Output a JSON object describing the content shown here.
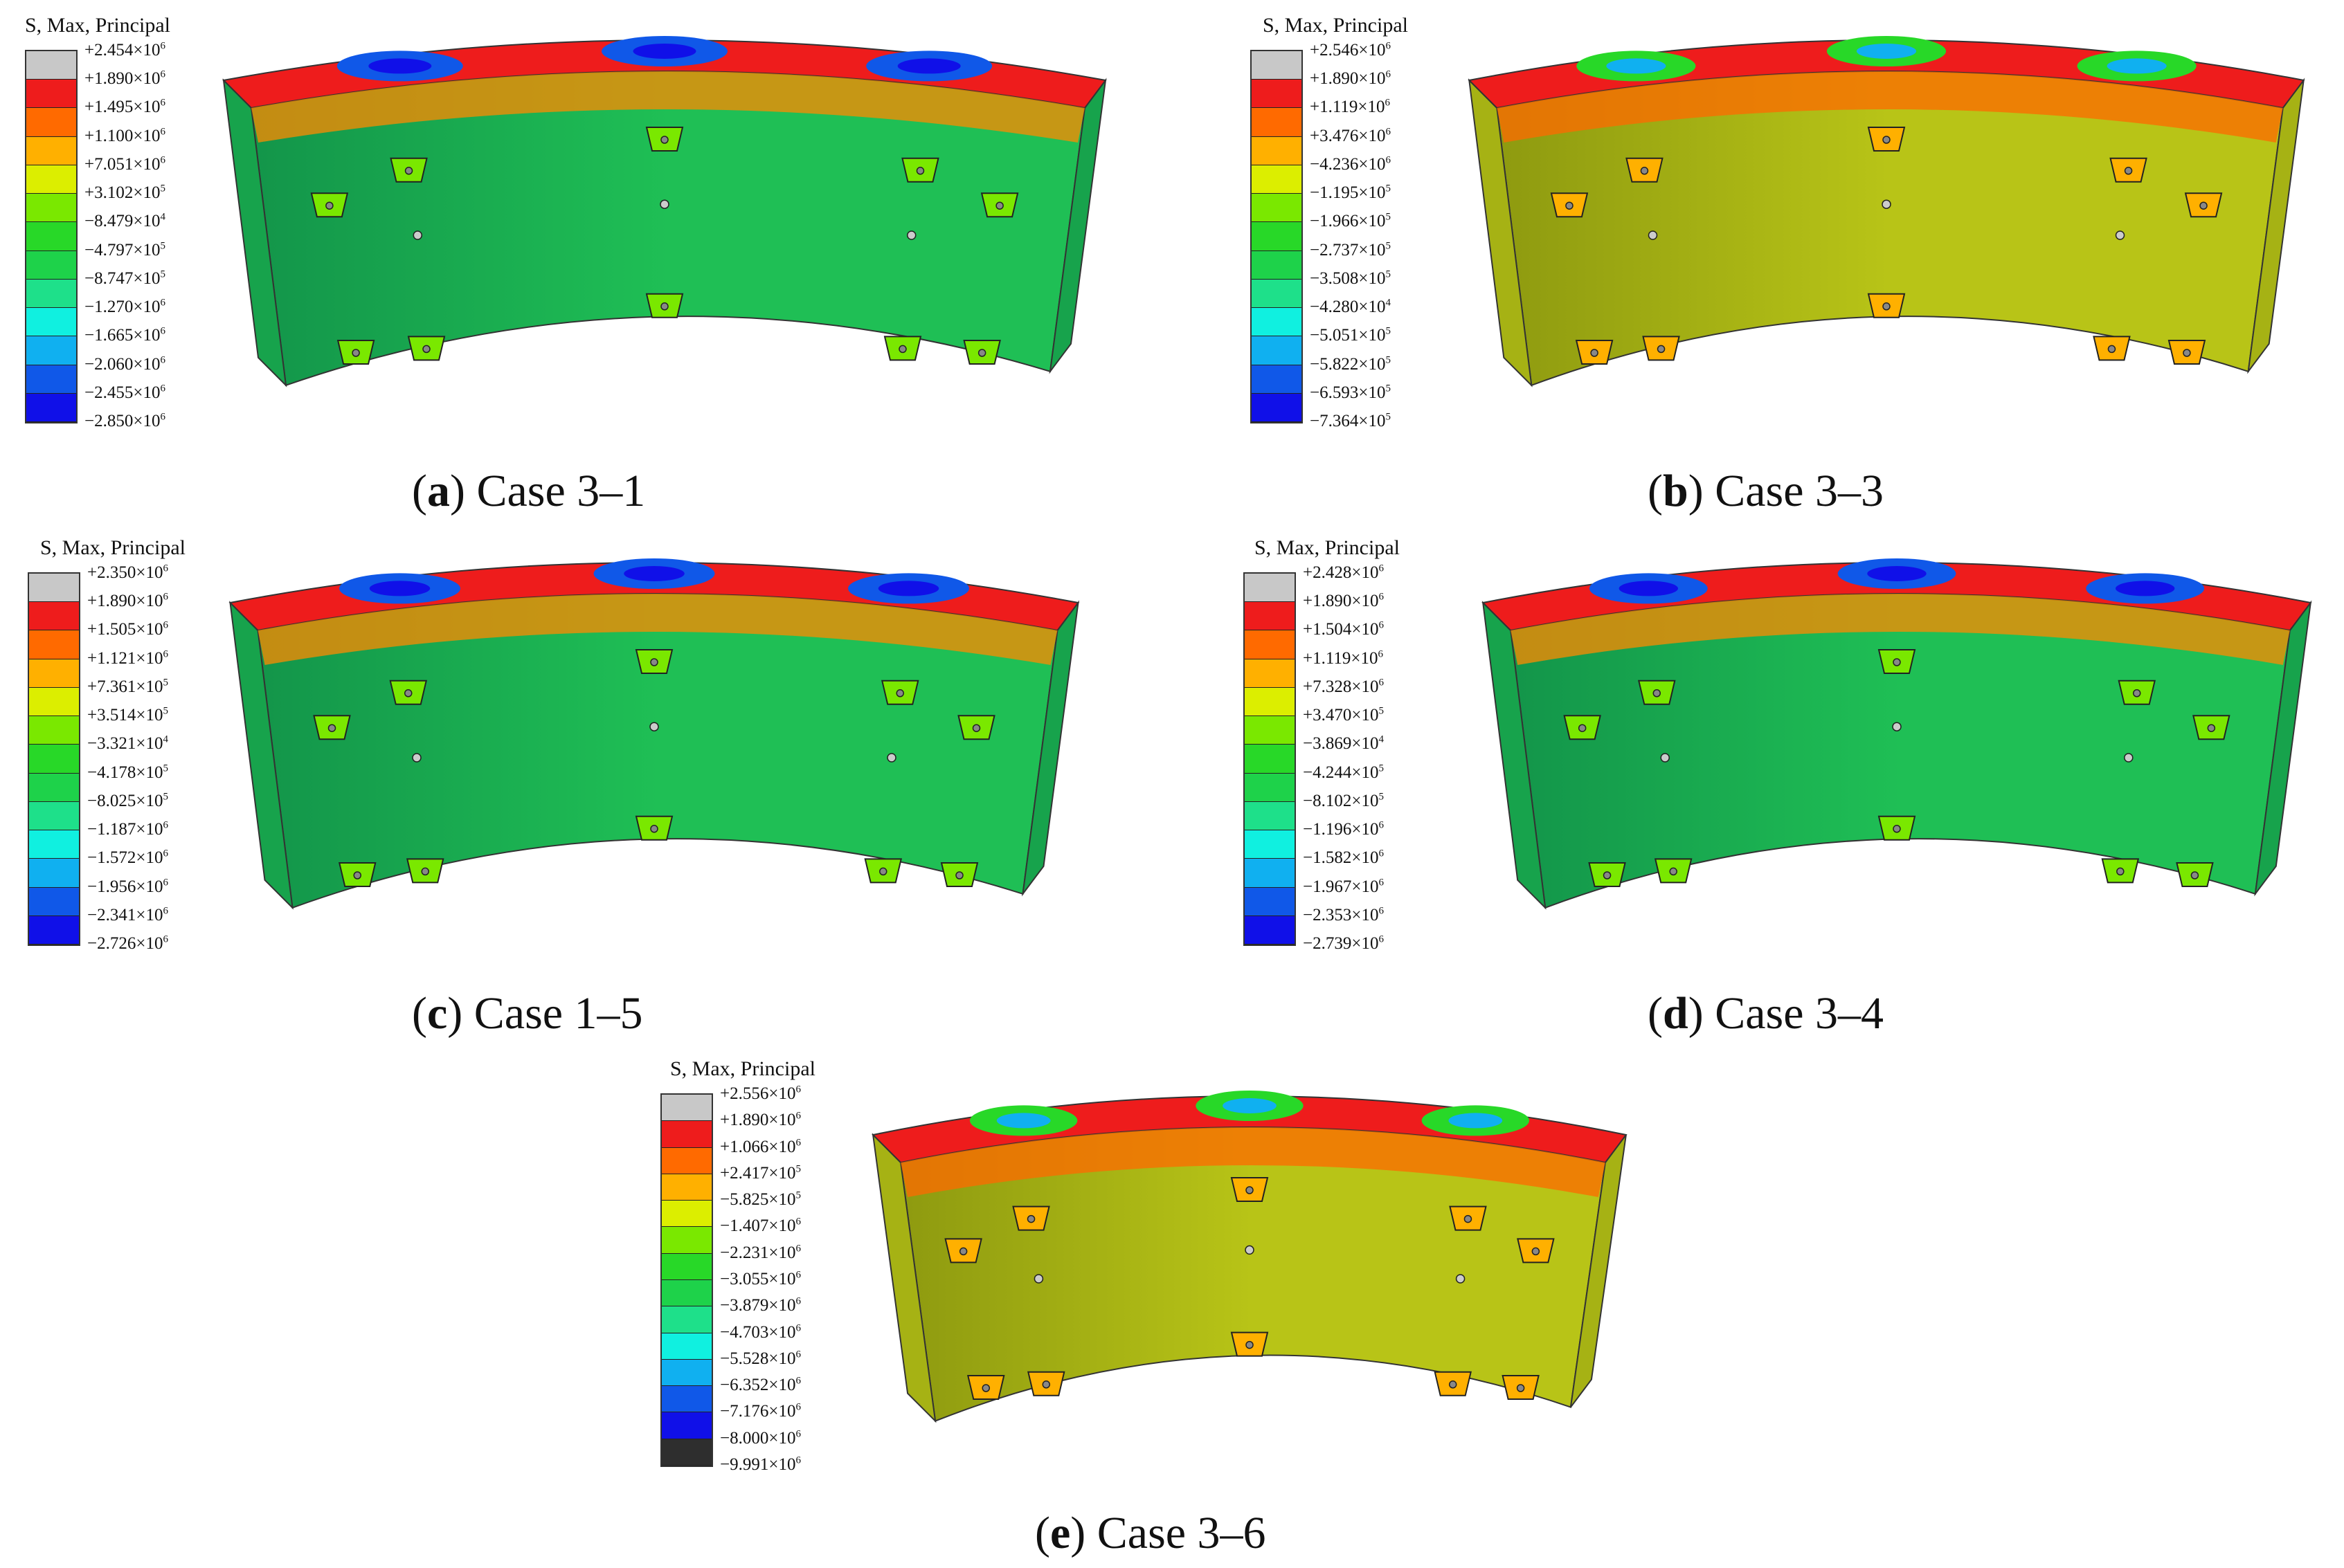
{
  "legend_title": "S, Max, Principal",
  "panels": [
    {
      "letter": "a",
      "caption": "Case 3–1",
      "labels": [
        [
          "+2.454",
          "6"
        ],
        [
          "+1.890",
          "6"
        ],
        [
          "+1.495",
          "6"
        ],
        [
          "+1.100",
          "6"
        ],
        [
          "+7.051",
          "6"
        ],
        [
          "+3.102",
          "5"
        ],
        [
          "−8.479",
          "4"
        ],
        [
          "−4.797",
          "5"
        ],
        [
          "−8.747",
          "5"
        ],
        [
          "−1.270",
          "6"
        ],
        [
          "−1.665",
          "6"
        ],
        [
          "−2.060",
          "6"
        ],
        [
          "−2.455",
          "6"
        ],
        [
          "−2.850",
          "6"
        ]
      ]
    },
    {
      "letter": "b",
      "caption": "Case 3–3",
      "labels": [
        [
          "+2.546",
          "6"
        ],
        [
          "+1.890",
          "6"
        ],
        [
          "+1.119",
          "6"
        ],
        [
          "+3.476",
          "6"
        ],
        [
          "−4.236",
          "6"
        ],
        [
          "−1.195",
          "5"
        ],
        [
          "−1.966",
          "5"
        ],
        [
          "−2.737",
          "5"
        ],
        [
          "−3.508",
          "5"
        ],
        [
          "−4.280",
          "4"
        ],
        [
          "−5.051",
          "5"
        ],
        [
          "−5.822",
          "5"
        ],
        [
          "−6.593",
          "5"
        ],
        [
          "−7.364",
          "5"
        ]
      ]
    },
    {
      "letter": "c",
      "caption": "Case 1–5",
      "labels": [
        [
          "+2.350",
          "6"
        ],
        [
          "+1.890",
          "6"
        ],
        [
          "+1.505",
          "6"
        ],
        [
          "+1.121",
          "6"
        ],
        [
          "+7.361",
          "5"
        ],
        [
          "+3.514",
          "5"
        ],
        [
          "−3.321",
          "4"
        ],
        [
          "−4.178",
          "5"
        ],
        [
          "−8.025",
          "5"
        ],
        [
          "−1.187",
          "6"
        ],
        [
          "−1.572",
          "6"
        ],
        [
          "−1.956",
          "6"
        ],
        [
          "−2.341",
          "6"
        ],
        [
          "−2.726",
          "6"
        ]
      ]
    },
    {
      "letter": "d",
      "caption": "Case 3–4",
      "labels": [
        [
          "+2.428",
          "6"
        ],
        [
          "+1.890",
          "6"
        ],
        [
          "+1.504",
          "6"
        ],
        [
          "+1.119",
          "6"
        ],
        [
          "+7.328",
          "6"
        ],
        [
          "+3.470",
          "5"
        ],
        [
          "−3.869",
          "4"
        ],
        [
          "−4.244",
          "5"
        ],
        [
          "−8.102",
          "5"
        ],
        [
          "−1.196",
          "6"
        ],
        [
          "−1.582",
          "6"
        ],
        [
          "−1.967",
          "6"
        ],
        [
          "−2.353",
          "6"
        ],
        [
          "−2.739",
          "6"
        ]
      ]
    },
    {
      "letter": "e",
      "caption": "Case 3–6",
      "labels": [
        [
          "+2.556",
          "6"
        ],
        [
          "+1.890",
          "6"
        ],
        [
          "+1.066",
          "6"
        ],
        [
          "+2.417",
          "5"
        ],
        [
          "−5.825",
          "5"
        ],
        [
          "−1.407",
          "6"
        ],
        [
          "−2.231",
          "6"
        ],
        [
          "−3.055",
          "6"
        ],
        [
          "−3.879",
          "6"
        ],
        [
          "−4.703",
          "6"
        ],
        [
          "−5.528",
          "6"
        ],
        [
          "−6.352",
          "6"
        ],
        [
          "−7.176",
          "6"
        ],
        [
          "−8.000",
          "6"
        ],
        [
          "−9.991",
          "6"
        ]
      ]
    }
  ],
  "colors": {
    "scale13": [
      "#c8c8c8",
      "#ee1c1c",
      "#ff6a00",
      "#ffb000",
      "#dcee00",
      "#7ae800",
      "#28d828",
      "#1ed24a",
      "#1ee08a",
      "#10f0e0",
      "#10b0f0",
      "#1058e8",
      "#1010e8"
    ],
    "scale14": [
      "#c8c8c8",
      "#ee1c1c",
      "#ff6a00",
      "#ffb000",
      "#dcee00",
      "#7ae800",
      "#28d828",
      "#1ed24a",
      "#1ee08a",
      "#10f0e0",
      "#10b0f0",
      "#1058e8",
      "#1010e8",
      "#2e2e2e"
    ],
    "green_body": "#1fbf55",
    "yellow_body": "#b8c417"
  }
}
